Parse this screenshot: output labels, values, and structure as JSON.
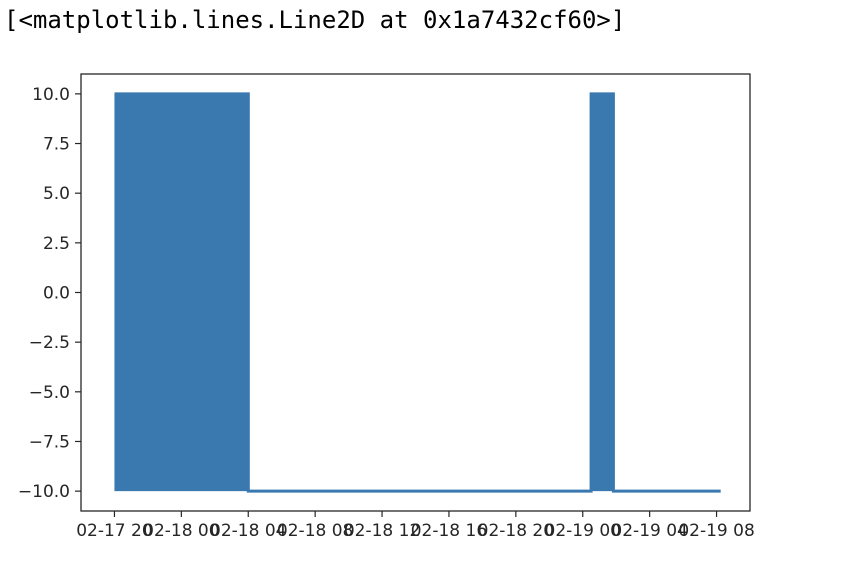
{
  "output_text": "[<matplotlib.lines.Line2D at 0x1a7432cf60>]",
  "colors": {
    "line": "#3a78b0",
    "axes": "#262626"
  },
  "chart_data": {
    "type": "line",
    "title": "",
    "xlabel": "",
    "ylabel": "",
    "ylim": [
      -11,
      11
    ],
    "xlim": [
      "2018-02-17 18:00",
      "2018-02-19 10:00"
    ],
    "grid": false,
    "y_ticks": [
      10.0,
      7.5,
      5.0,
      2.5,
      0.0,
      -2.5,
      -5.0,
      -7.5,
      -10.0
    ],
    "y_tick_labels": [
      "10.0",
      "7.5",
      "5.0",
      "2.5",
      "0.0",
      "−2.5",
      "−5.0",
      "−7.5",
      "−10.0"
    ],
    "x_ticks": [
      "2018-02-17 20:00",
      "2018-02-18 00:00",
      "2018-02-18 04:00",
      "2018-02-18 08:00",
      "2018-02-18 12:00",
      "2018-02-18 16:00",
      "2018-02-18 20:00",
      "2018-02-19 00:00",
      "2018-02-19 04:00",
      "2018-02-19 08:00"
    ],
    "x_tick_labels": [
      "02-17 20",
      "02-18 00",
      "02-18 04",
      "02-18 08",
      "02-18 12",
      "02-18 16",
      "02-18 20",
      "02-19 00",
      "02-19 04",
      "02-19 08"
    ],
    "series": [
      {
        "x": [
          "2018-02-17 20:00",
          "2018-02-18 04:00",
          "2018-02-18 04:00",
          "2018-02-19 00:30",
          "2018-02-19 00:30",
          "2018-02-19 01:50",
          "2018-02-19 01:50",
          "2018-02-19 08:15"
        ],
        "y": [
          10,
          10,
          -10,
          -10,
          10,
          10,
          -10,
          -10
        ]
      }
    ],
    "oscillating_regions": [
      {
        "start": "2018-02-17 20:00",
        "end": "2018-02-18 04:00",
        "low": -10,
        "high": 10
      },
      {
        "start": "2018-02-19 00:30",
        "end": "2018-02-19 01:50",
        "low": -10,
        "high": 10
      }
    ]
  }
}
